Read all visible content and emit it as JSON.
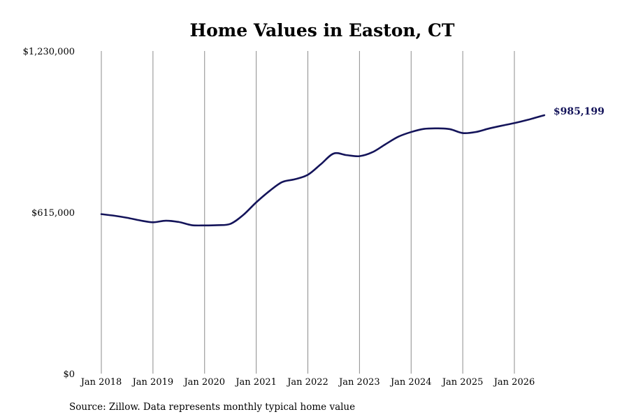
{
  "chart_data": {
    "type": "line",
    "title": "Home Values in Easton, CT",
    "xlabel": "",
    "ylabel": "",
    "ylim": [
      0,
      1230000
    ],
    "ytick_values": [
      0,
      615000,
      1230000
    ],
    "ytick_labels": [
      "$0",
      "$615,000",
      "$1,230,000"
    ],
    "xtick_labels": [
      "Jan 2018",
      "Jan 2019",
      "Jan 2020",
      "Jan 2021",
      "Jan 2022",
      "Jan 2023",
      "Jan 2024",
      "Jan 2025",
      "Jan 2026"
    ],
    "xtick_values": [
      2018,
      2019,
      2020,
      2021,
      2022,
      2023,
      2024,
      2025,
      2026
    ],
    "xlim": [
      2018,
      2026.6
    ],
    "grid": "vertical",
    "series_color": "#14145a",
    "series": [
      {
        "x": [
          2018.0,
          2018.25,
          2018.5,
          2018.75,
          2019.0,
          2019.25,
          2019.5,
          2019.75,
          2020.0,
          2020.25,
          2020.5,
          2020.75,
          2021.0,
          2021.25,
          2021.5,
          2021.75,
          2022.0,
          2022.25,
          2022.5,
          2022.75,
          2023.0,
          2023.25,
          2023.5,
          2023.75,
          2024.0,
          2024.25,
          2024.5,
          2024.75,
          2025.0,
          2025.25,
          2025.5,
          2025.75,
          2026.0,
          2026.25,
          2026.58
        ],
        "values": [
          608000,
          602000,
          594000,
          584000,
          577000,
          583000,
          578000,
          566000,
          565000,
          566000,
          571000,
          605000,
          653000,
          695000,
          730000,
          741000,
          758000,
          798000,
          839000,
          833000,
          829000,
          844000,
          874000,
          903000,
          921000,
          933000,
          935000,
          932000,
          917000,
          921000,
          934000,
          945000,
          955000,
          967000,
          985199
        ]
      }
    ],
    "end_label": "$985,199",
    "source": "Source: Zillow. Data represents monthly typical home value"
  }
}
